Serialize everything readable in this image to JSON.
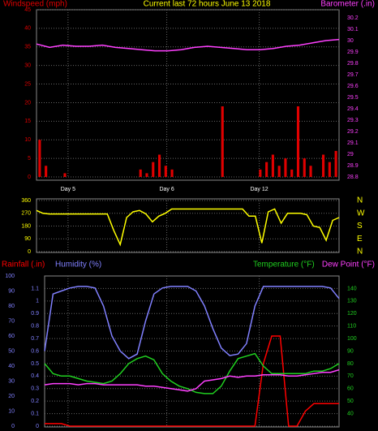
{
  "chart_data": [
    {
      "type": "bar",
      "title": "Current last 72 hours June 13 2018",
      "xlim": [
        0,
        72
      ],
      "xticks": [
        {
          "value": 7.5,
          "label": "Day 5"
        },
        {
          "value": 31,
          "label": "Day 6"
        },
        {
          "value": 53,
          "label": "Day 12"
        }
      ],
      "ylim": [
        0,
        45
      ],
      "yticks": [
        0,
        5,
        10,
        15,
        20,
        25,
        30,
        35,
        40,
        45
      ],
      "y2lim": [
        28.8,
        30.2
      ],
      "y2ticks": [
        28.8,
        28.9,
        29,
        29.1,
        29.2,
        29.3,
        29.4,
        29.5,
        29.6,
        29.7,
        29.8,
        29.9,
        30,
        30.1,
        30.2
      ],
      "grid": true,
      "series": [
        {
          "name": "Windspeed (mph)",
          "type": "bar",
          "color": "#e00000",
          "values": [
            10,
            3,
            0,
            0,
            1,
            0,
            0,
            0,
            0,
            0,
            0,
            0,
            0,
            0,
            0,
            0,
            2,
            1,
            4,
            6,
            3,
            2,
            0,
            0,
            0,
            0,
            0,
            0,
            0,
            19,
            0,
            0,
            0,
            0,
            0,
            2,
            4,
            6,
            3,
            5,
            2,
            19,
            5,
            3,
            0,
            6,
            4,
            7
          ]
        },
        {
          "name": "Barometer (.in)",
          "type": "line",
          "axis": "y2",
          "color": "#ff40ff",
          "values": [
            29.97,
            29.94,
            29.96,
            29.95,
            29.95,
            29.96,
            29.94,
            29.93,
            29.92,
            29.91,
            29.91,
            29.92,
            29.94,
            29.95,
            29.94,
            29.93,
            29.92,
            29.92,
            29.93,
            29.95,
            29.96,
            29.98,
            30.0,
            30.01
          ]
        }
      ]
    },
    {
      "type": "line",
      "ylim": [
        0,
        360
      ],
      "yticks": [
        0,
        90,
        180,
        270,
        360
      ],
      "y2ticks": [
        {
          "value": 0,
          "label": "N"
        },
        {
          "value": 90,
          "label": "E"
        },
        {
          "value": 180,
          "label": "S"
        },
        {
          "value": 270,
          "label": "W"
        },
        {
          "value": 360,
          "label": "N"
        }
      ],
      "grid": true,
      "series": [
        {
          "type": "line",
          "color": "#ffff00",
          "values": [
            290,
            270,
            265,
            265,
            265,
            265,
            265,
            265,
            265,
            265,
            265,
            265,
            150,
            50,
            240,
            280,
            290,
            265,
            210,
            250,
            270,
            300,
            300,
            300,
            300,
            300,
            300,
            300,
            300,
            300,
            300,
            300,
            300,
            250,
            250,
            60,
            280,
            300,
            200,
            270,
            270,
            270,
            260,
            180,
            170,
            80,
            220,
            240
          ]
        }
      ]
    },
    {
      "type": "line",
      "ylim": [
        0,
        1.2
      ],
      "yticks": [
        0,
        0.1,
        0.2,
        0.3,
        0.4,
        0.5,
        0.6,
        0.7,
        0.8,
        0.9,
        1,
        1.1
      ],
      "y3lim": [
        0,
        100
      ],
      "y3ticks": [
        0,
        10,
        20,
        30,
        40,
        50,
        60,
        70,
        80,
        90,
        100
      ],
      "y2lim": [
        30,
        150
      ],
      "y2ticks": [
        40,
        50,
        60,
        70,
        80,
        90,
        100,
        110,
        120,
        130,
        140
      ],
      "grid": true,
      "series": [
        {
          "name": "Rainfall (.in)",
          "type": "line",
          "color": "#ff0000",
          "values": [
            0.02,
            0.02,
            0.02,
            0,
            0,
            0,
            0,
            0,
            0,
            0,
            0,
            0,
            0,
            0,
            0,
            0,
            0,
            0,
            0,
            0,
            0,
            0,
            0,
            0,
            0,
            0,
            0.5,
            0.72,
            0.72,
            0,
            0,
            0.12,
            0.18,
            0.18,
            0.18,
            0.18
          ]
        },
        {
          "name": "Humidity (%)",
          "type": "line",
          "axis": "y3",
          "color": "#8080ff",
          "values": [
            50,
            88,
            90,
            92,
            93,
            93,
            92,
            80,
            60,
            50,
            45,
            48,
            70,
            88,
            92,
            93,
            93,
            93,
            90,
            80,
            65,
            52,
            47,
            48,
            55,
            80,
            93,
            93,
            93,
            93,
            93,
            93,
            93,
            93,
            92,
            85
          ]
        },
        {
          "name": "Temperature (°F)",
          "type": "line",
          "axis": "y2",
          "color": "#20d020",
          "values": [
            80,
            72,
            70,
            70,
            68,
            66,
            65,
            64,
            66,
            72,
            80,
            84,
            86,
            83,
            72,
            66,
            62,
            60,
            57,
            56,
            56,
            62,
            74,
            84,
            86,
            88,
            78,
            72,
            72,
            72,
            72,
            72,
            74,
            74,
            76,
            80
          ]
        },
        {
          "name": "Dew Point (°F)",
          "type": "line",
          "axis": "y2",
          "color": "#ff40ff",
          "values": [
            63,
            64,
            64,
            64,
            63,
            64,
            64,
            63,
            63,
            63,
            63,
            63,
            62,
            62,
            61,
            60,
            59,
            58,
            60,
            66,
            67,
            68,
            70,
            69,
            70,
            70,
            71,
            71,
            71,
            70,
            70,
            71,
            72,
            73,
            73,
            75
          ]
        }
      ]
    }
  ]
}
